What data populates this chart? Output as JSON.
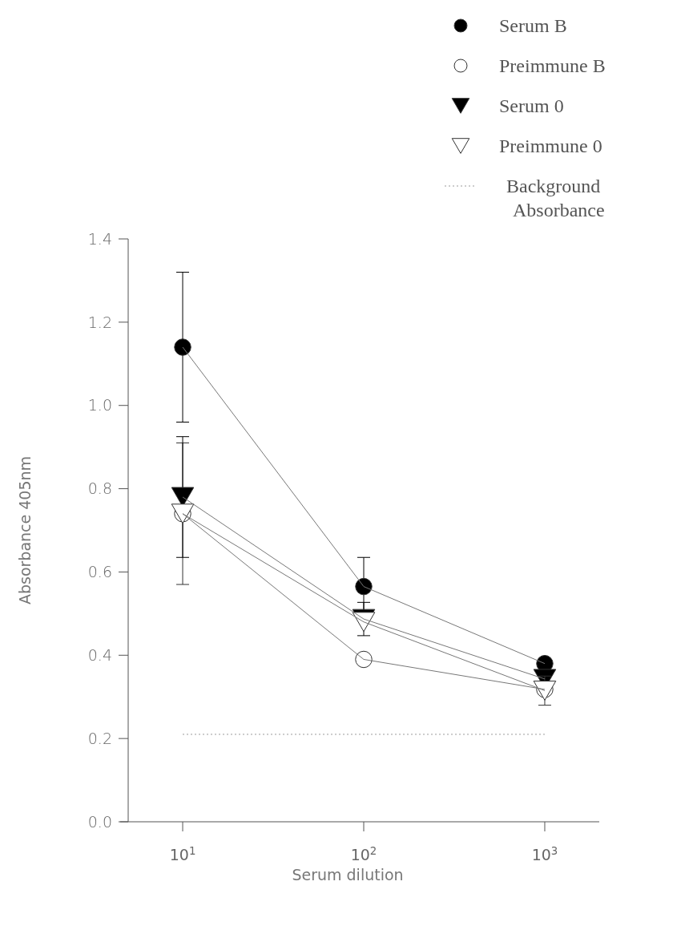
{
  "chart_data": {
    "type": "line",
    "xlabel": "Serum dilution",
    "ylabel": "Absorbance 405nm",
    "log": "x",
    "x": [
      10,
      100,
      1000
    ],
    "xlim": [
      5,
      2000
    ],
    "xticks": [
      {
        "value": 10,
        "label": "10$^{1}$"
      },
      {
        "value": 100,
        "label": "10$^{2}$"
      },
      {
        "value": 1000,
        "label": "10$^{3}$"
      }
    ],
    "ylim": [
      0,
      1.4
    ],
    "yticks": [
      {
        "value": 0,
        "label": "0.0"
      },
      0.2,
      0.4,
      0.6,
      0.8,
      {
        "value": 1,
        "label": "1.0"
      },
      1.2,
      1.4
    ],
    "grid": false,
    "legend": "top right",
    "line_style": "solid",
    "series": [
      {
        "name": "Serum B",
        "color": "#000000",
        "marker": "circle",
        "values": [
          1.14,
          0.565,
          0.38
        ],
        "errors": [
          0.18,
          0.07,
          null
        ]
      },
      {
        "name": "Preimmune B",
        "color": "#ffffff",
        "marker": "circle",
        "values": [
          0.74,
          0.39,
          0.318
        ],
        "errors": [
          0.17,
          null,
          null
        ]
      },
      {
        "name": "Serum 0",
        "color": "#000000",
        "marker": "triangle",
        "values": [
          0.78,
          0.487,
          0.343
        ],
        "errors": [
          0.145,
          0.04,
          null
        ]
      },
      {
        "name": "Preimmune 0",
        "color": "#ffffff",
        "marker": "triangle",
        "values": [
          0.74,
          0.48,
          0.315
        ],
        "errors": [
          null,
          null,
          0.035
        ]
      },
      {
        "name": "Background Absorbance",
        "color": "#999999",
        "marker": "none",
        "line_style": "dotted",
        "x": [
          10,
          1000
        ],
        "values": [
          0.21,
          0.21
        ]
      }
    ]
  }
}
